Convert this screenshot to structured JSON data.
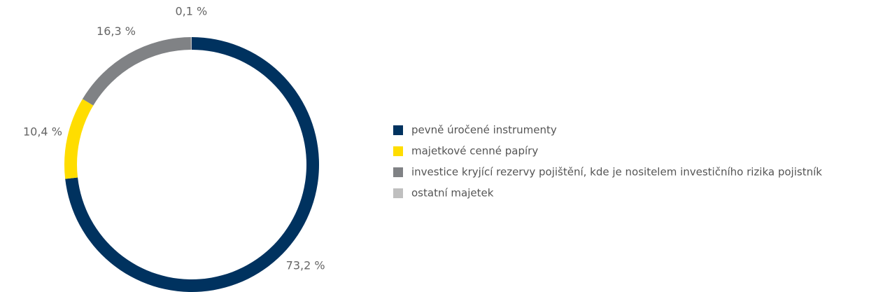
{
  "chart_data": {
    "type": "donut",
    "categories": [
      "pevně úročené instrumenty",
      "majetkové cenné papíry",
      "investice kryjící rezervy pojištění, kde je nositelem investičního rizika pojistník",
      "ostatní majetek"
    ],
    "values": [
      73.2,
      10.4,
      16.3,
      0.1
    ],
    "value_labels": [
      "73,2 %",
      "10,4 %",
      "16,3 %",
      "0,1 %"
    ],
    "colors": [
      "#00325f",
      "#ffdd00",
      "#808285",
      "#bfbfbf"
    ],
    "legend": "right"
  }
}
